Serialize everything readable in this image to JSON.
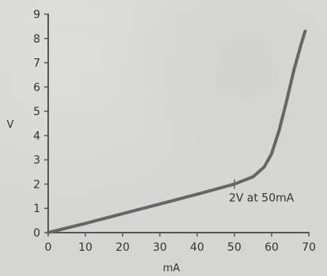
{
  "chart_data": {
    "type": "line",
    "title": "",
    "xlabel": "mA",
    "ylabel": "V",
    "x_ticks": [
      "0",
      "10",
      "20",
      "30",
      "40",
      "50",
      "60",
      "70"
    ],
    "y_ticks": [
      "0",
      "1",
      "2",
      "3",
      "4",
      "5",
      "6",
      "7",
      "8",
      "9"
    ],
    "xlim": [
      0,
      70
    ],
    "ylim": [
      0,
      9
    ],
    "series": [
      {
        "x": [
          0,
          10,
          20,
          30,
          40,
          50,
          55,
          58,
          60,
          62,
          64,
          66,
          68,
          69
        ],
        "y": [
          0,
          0.38,
          0.78,
          1.18,
          1.58,
          2.0,
          2.3,
          2.7,
          3.25,
          4.2,
          5.4,
          6.7,
          7.8,
          8.3
        ]
      }
    ],
    "annotation": {
      "text": "2V at 50mA",
      "x": 50,
      "y": 2
    },
    "grid": false,
    "line_color": "#666666"
  }
}
